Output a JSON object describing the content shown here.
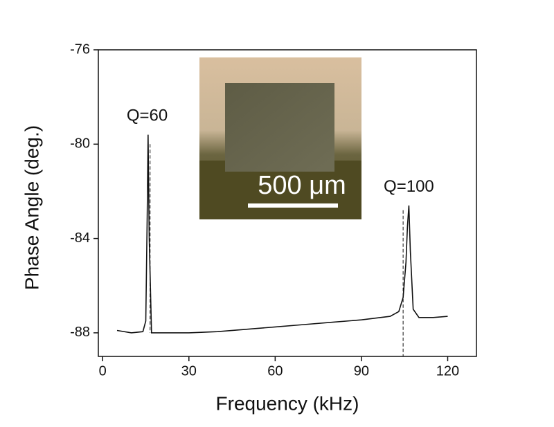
{
  "chart_data": {
    "type": "line",
    "x_label": "Frequency (kHz)",
    "y_label": "Phase Angle (deg.)",
    "xlim": [
      -1.5,
      130
    ],
    "ylim": [
      -89,
      -76
    ],
    "xticks": [
      0,
      30,
      60,
      90,
      120
    ],
    "yticks": [
      -76,
      -80,
      -84,
      -88
    ],
    "x": [
      5,
      10,
      14,
      15,
      15.5,
      15.8,
      16.2,
      17,
      20,
      30,
      40,
      50,
      60,
      70,
      80,
      90,
      100,
      103,
      104.5,
      105.5,
      106,
      106.5,
      107,
      108,
      110,
      115,
      120
    ],
    "series": [
      {
        "color": "#111111",
        "values": [
          -87.9,
          -88.0,
          -87.95,
          -87.5,
          -83,
          -79.6,
          -84,
          -88.0,
          -88.0,
          -88.0,
          -87.95,
          -87.85,
          -87.75,
          -87.65,
          -87.55,
          -87.45,
          -87.3,
          -87.1,
          -86.5,
          -85.0,
          -83.5,
          -82.6,
          -84.5,
          -87.0,
          -87.35,
          -87.35,
          -87.3
        ]
      }
    ],
    "reference_lines": [
      {
        "x": 16.5,
        "y": [
          -80,
          -88
        ]
      },
      {
        "x": 104.5,
        "y": [
          -82.8,
          -89
        ]
      }
    ],
    "annotations": [
      {
        "text": "Q=60",
        "x": 15.5,
        "y": -79
      },
      {
        "text": "Q=100",
        "x": 106.5,
        "y": -82
      }
    ],
    "inset": {
      "scale_label": "500 μm"
    }
  }
}
